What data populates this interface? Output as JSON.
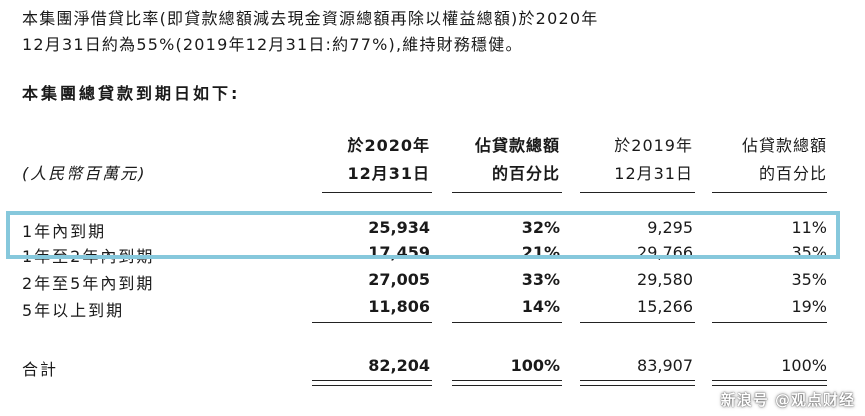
{
  "paragraph": {
    "line1": "本集團淨借貸比率(即貸款總額減去現金資源總額再除以權益總額)於2020年",
    "line2": "12月31日約為55%(2019年12月31日:約77%),維持財務穩健。"
  },
  "heading": "本集團總貸款到期日如下:",
  "table": {
    "unit_label": "(人民幣百萬元)",
    "columns": [
      {
        "line1": "於2020年",
        "line2": "12月31日"
      },
      {
        "line1": "佔貸款總額",
        "line2": "的百分比"
      },
      {
        "line1": "於2019年",
        "line2": "12月31日"
      },
      {
        "line1": "佔貸款總額",
        "line2": "的百分比"
      }
    ],
    "rows": [
      {
        "label": "1年內到期",
        "v2020": "25,934",
        "p2020": "32%",
        "v2019": "9,295",
        "p2019": "11%"
      },
      {
        "label": "1年至2年內到期",
        "v2020": "17,459",
        "p2020": "21%",
        "v2019": "29,766",
        "p2019": "35%"
      },
      {
        "label": "2年至5年內到期",
        "v2020": "27,005",
        "p2020": "33%",
        "v2019": "29,580",
        "p2019": "35%"
      },
      {
        "label": "5年以上到期",
        "v2020": "11,806",
        "p2020": "14%",
        "v2019": "15,266",
        "p2019": "19%"
      }
    ],
    "total": {
      "label": "合計",
      "v2020": "82,204",
      "p2020": "100%",
      "v2019": "83,907",
      "p2019": "100%"
    }
  },
  "highlight_color": "#86c8dc",
  "watermark": "新浪号 @观点财经"
}
